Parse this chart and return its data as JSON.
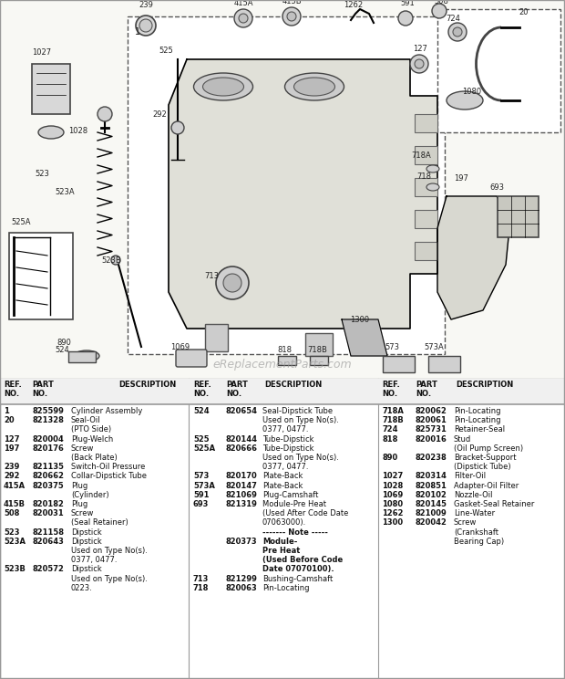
{
  "bg_color": "#ffffff",
  "watermark": "eReplacementParts.com",
  "col1_entries": [
    [
      "1",
      "825599",
      "Cylinder Assembly",
      false
    ],
    [
      "20",
      "821328",
      "Seal-Oil",
      false
    ],
    [
      "",
      "",
      "(PTO Side)",
      false
    ],
    [
      "127",
      "820004",
      "Plug-Welch",
      false
    ],
    [
      "197",
      "820176",
      "Screw",
      false
    ],
    [
      "",
      "",
      "(Back Plate)",
      false
    ],
    [
      "239",
      "821135",
      "Switch-Oil Pressure",
      false
    ],
    [
      "292",
      "820662",
      "Collar-Dipstick Tube",
      false
    ],
    [
      "415A",
      "820375",
      "Plug",
      false
    ],
    [
      "",
      "",
      "(Cylinder)",
      false
    ],
    [
      "415B",
      "820182",
      "Plug",
      false
    ],
    [
      "508",
      "820031",
      "Screw",
      false
    ],
    [
      "",
      "",
      "(Seal Retainer)",
      false
    ],
    [
      "523",
      "821158",
      "Dipstick",
      false
    ],
    [
      "523A",
      "820643",
      "Dipstick",
      false
    ],
    [
      "",
      "",
      "Used on Type No(s).",
      false
    ],
    [
      "",
      "",
      "0377, 0477.",
      false
    ],
    [
      "523B",
      "820572",
      "Dipstick",
      false
    ],
    [
      "",
      "",
      "Used on Type No(s).",
      false
    ],
    [
      "",
      "",
      "0223.",
      false
    ]
  ],
  "col2_entries": [
    [
      "524",
      "820654",
      "Seal-Dipstick Tube",
      false
    ],
    [
      "",
      "",
      "Used on Type No(s).",
      false
    ],
    [
      "",
      "",
      "0377, 0477.",
      false
    ],
    [
      "525",
      "820144",
      "Tube-Dipstick",
      false
    ],
    [
      "525A",
      "820666",
      "Tube-Dipstick",
      false
    ],
    [
      "",
      "",
      "Used on Type No(s).",
      false
    ],
    [
      "",
      "",
      "0377, 0477.",
      false
    ],
    [
      "573",
      "820170",
      "Plate-Back",
      false
    ],
    [
      "573A",
      "820147",
      "Plate-Back",
      false
    ],
    [
      "591",
      "821069",
      "Plug-Camshaft",
      false
    ],
    [
      "693",
      "821319",
      "Module-Pre Heat",
      false
    ],
    [
      "",
      "",
      "(Used After Code Date",
      false
    ],
    [
      "",
      "",
      "07063000).",
      false
    ],
    [
      "",
      "",
      "------- Note -----",
      true
    ],
    [
      "",
      "820373",
      "Module-",
      true
    ],
    [
      "",
      "",
      "Pre Heat",
      true
    ],
    [
      "",
      "",
      "(Used Before Code",
      true
    ],
    [
      "",
      "",
      "Date 07070100).",
      true
    ],
    [
      "713",
      "821299",
      "Bushing-Camshaft",
      false
    ],
    [
      "718",
      "820063",
      "Pin-Locating",
      false
    ]
  ],
  "col3_entries": [
    [
      "718A",
      "820062",
      "Pin-Locating",
      false
    ],
    [
      "718B",
      "820061",
      "Pin-Locating",
      false
    ],
    [
      "724",
      "825731",
      "Retainer-Seal",
      false
    ],
    [
      "818",
      "820016",
      "Stud",
      false
    ],
    [
      "",
      "",
      "(Oil Pump Screen)",
      false
    ],
    [
      "890",
      "820238",
      "Bracket-Support",
      false
    ],
    [
      "",
      "",
      "(Dipstick Tube)",
      false
    ],
    [
      "1027",
      "820314",
      "Filter-Oil",
      false
    ],
    [
      "1028",
      "820851",
      "Adapter-Oil Filter",
      false
    ],
    [
      "1069",
      "820102",
      "Nozzle-Oil",
      false
    ],
    [
      "1080",
      "820145",
      "Gasket-Seal Retainer",
      false
    ],
    [
      "1262",
      "821009",
      "Line-Water",
      false
    ],
    [
      "1300",
      "820042",
      "Screw",
      false
    ],
    [
      "",
      "",
      "(Crankshaft",
      false
    ],
    [
      "",
      "",
      "Bearing Cap)",
      false
    ]
  ]
}
